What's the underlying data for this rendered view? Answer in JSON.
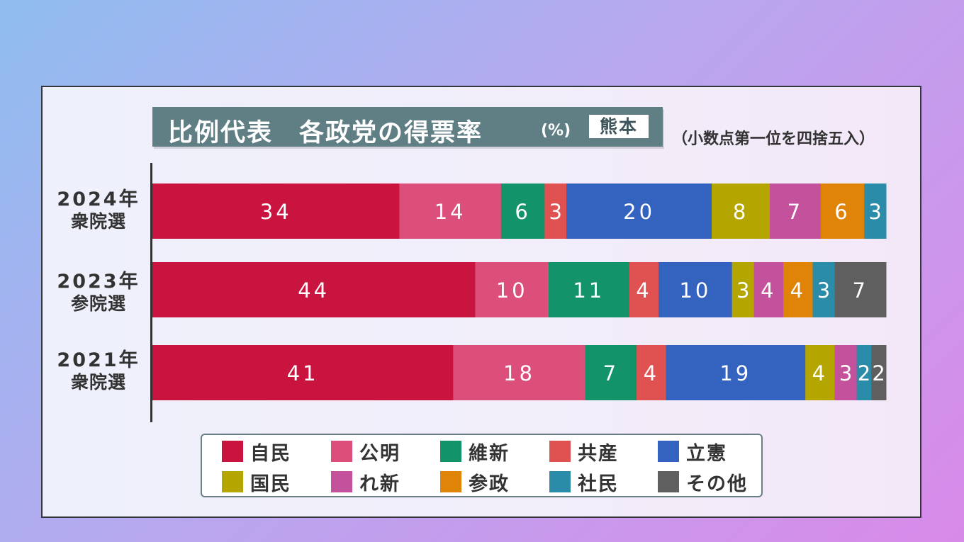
{
  "title": {
    "main": "比例代表　各政党の得票率",
    "unit": "(%)",
    "region": "熊本"
  },
  "note": "（小数点第一位を四捨五入）",
  "parties": [
    {
      "name": "自民",
      "color": "#c8143f"
    },
    {
      "name": "公明",
      "color": "#dc4f7a"
    },
    {
      "name": "維新",
      "color": "#13936a"
    },
    {
      "name": "共産",
      "color": "#e05252"
    },
    {
      "name": "立憲",
      "color": "#3462bf"
    },
    {
      "name": "国民",
      "color": "#b4a500"
    },
    {
      "name": "れ新",
      "color": "#c4519c"
    },
    {
      "name": "参政",
      "color": "#e08408"
    },
    {
      "name": "社民",
      "color": "#2a8ca8"
    },
    {
      "name": "その他",
      "color": "#5f5f5f"
    }
  ],
  "chart_data": {
    "type": "bar",
    "orientation": "horizontal",
    "stacked": true,
    "categories": [
      {
        "year": "2024年",
        "election": "衆院選"
      },
      {
        "year": "2023年",
        "election": "参院選"
      },
      {
        "year": "2021年",
        "election": "衆院選"
      }
    ],
    "series": [
      {
        "name": "自民",
        "values": [
          34,
          44,
          41
        ]
      },
      {
        "name": "公明",
        "values": [
          14,
          10,
          18
        ]
      },
      {
        "name": "維新",
        "values": [
          6,
          11,
          7
        ]
      },
      {
        "name": "共産",
        "values": [
          3,
          4,
          4
        ]
      },
      {
        "name": "立憲",
        "values": [
          20,
          10,
          19
        ]
      },
      {
        "name": "国民",
        "values": [
          8,
          3,
          4
        ]
      },
      {
        "name": "れ新",
        "values": [
          7,
          4,
          3
        ]
      },
      {
        "name": "参政",
        "values": [
          6,
          4,
          null
        ]
      },
      {
        "name": "社民",
        "values": [
          3,
          3,
          2
        ]
      },
      {
        "name": "その他",
        "values": [
          null,
          7,
          2
        ]
      }
    ],
    "title": "比例代表　各政党の得票率",
    "unit": "%",
    "legend": "bottom",
    "grid": false
  }
}
